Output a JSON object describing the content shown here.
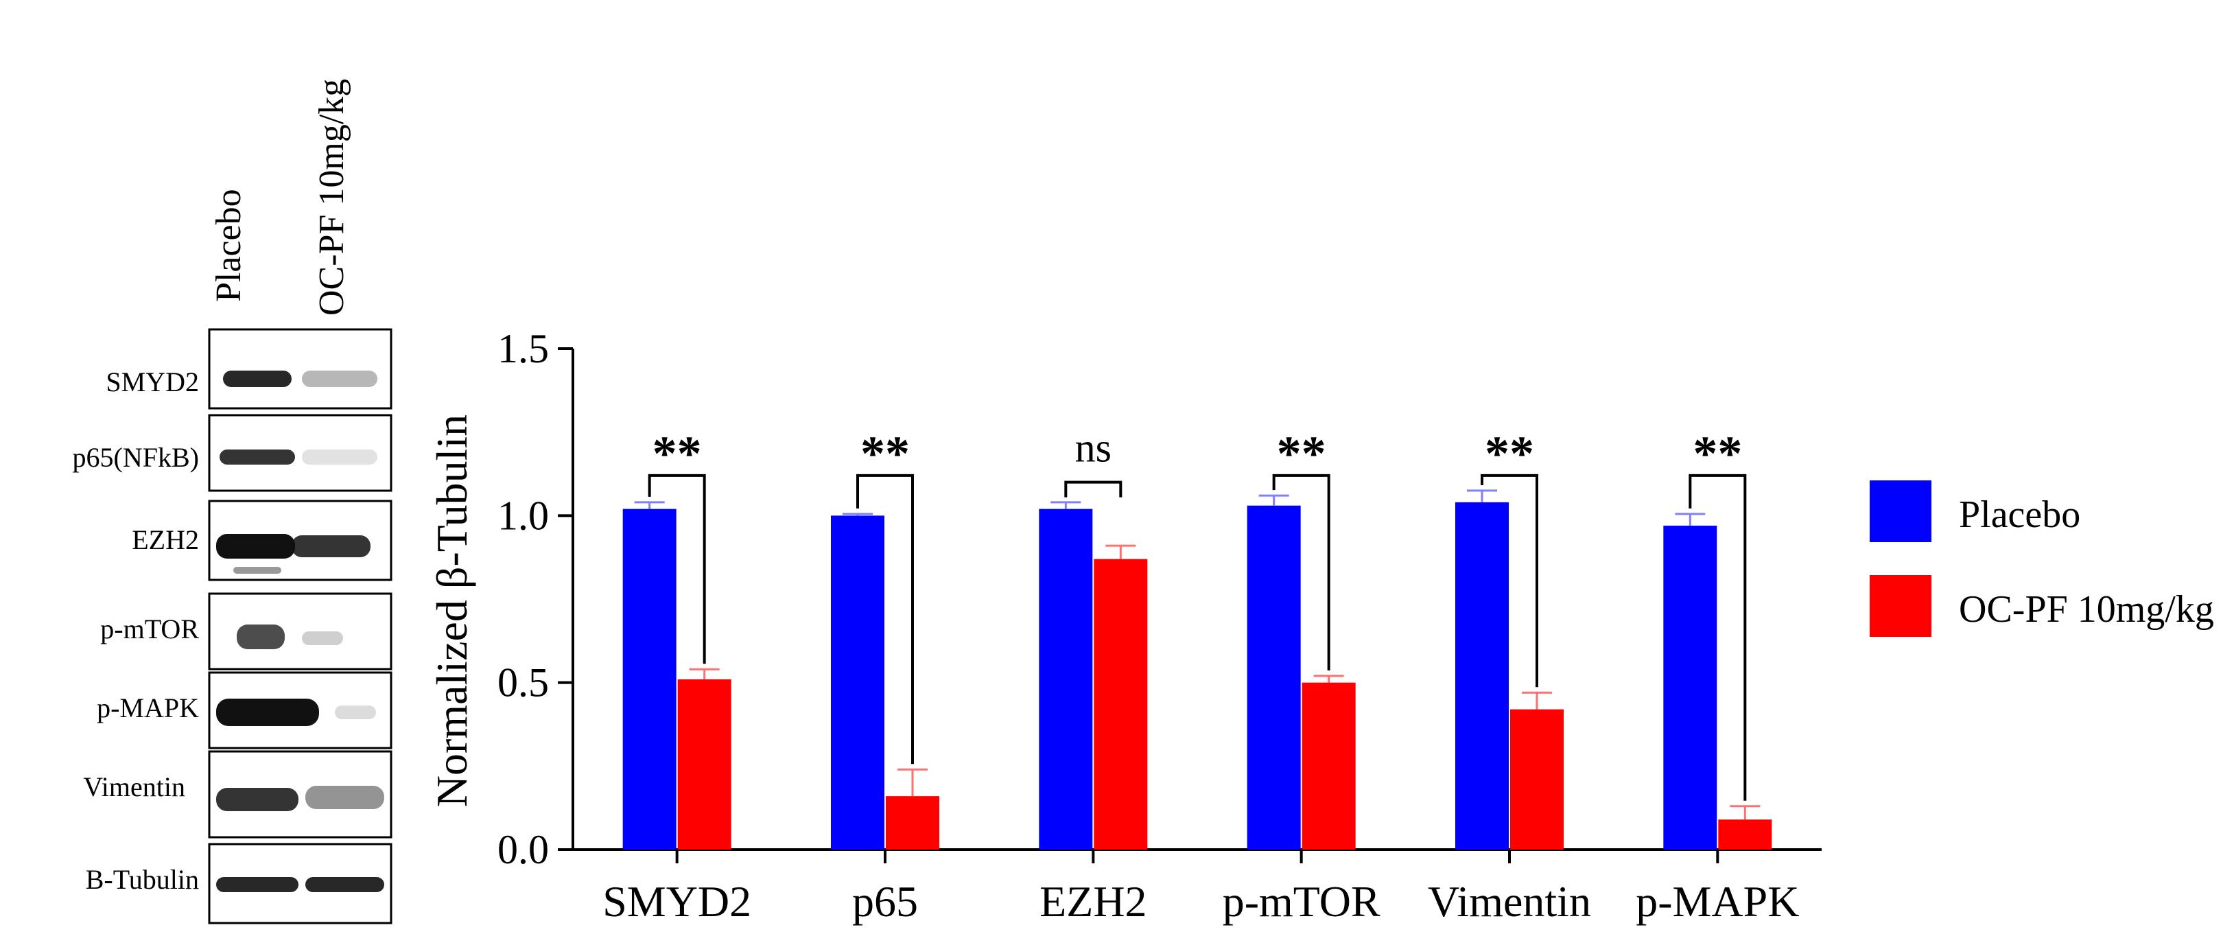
{
  "blot": {
    "lane_labels": [
      "Placebo",
      "OC-PF 10mg/kg"
    ],
    "rows": [
      {
        "label": "SMYD2",
        "bands": [
          0.9,
          0.3
        ]
      },
      {
        "label": "p65(NFkB)",
        "bands": [
          0.85,
          0.12
        ]
      },
      {
        "label": "EZH2",
        "bands": [
          1.0,
          0.85
        ]
      },
      {
        "label": "p-mTOR",
        "bands": [
          0.75,
          0.2
        ]
      },
      {
        "label": "p-MAPK",
        "bands": [
          1.0,
          0.15
        ]
      },
      {
        "label": "Vimentin",
        "bands": [
          0.85,
          0.45
        ]
      },
      {
        "label": "B-Tubulin",
        "bands": [
          0.9,
          0.9
        ]
      }
    ]
  },
  "chart_data": {
    "type": "bar",
    "title": "",
    "xlabel": "",
    "ylabel": "Normalized β-Tubulin",
    "ylim": [
      0,
      1.5
    ],
    "yticks": [
      "0.0",
      "0.5",
      "1.0",
      "1.5"
    ],
    "categories": [
      "SMYD2",
      "p65",
      "EZH2",
      "p-mTOR",
      "Vimentin",
      "p-MAPK"
    ],
    "series": [
      {
        "name": "Placebo",
        "color": "#0000ff",
        "error_color": "#8080ff",
        "values": [
          1.02,
          1.0,
          1.02,
          1.03,
          1.04,
          0.97
        ],
        "errors": [
          0.02,
          0.005,
          0.02,
          0.03,
          0.035,
          0.035
        ]
      },
      {
        "name": "OC-PF 10mg/kg",
        "color": "#ff0000",
        "error_color": "#ff7070",
        "values": [
          0.51,
          0.16,
          0.87,
          0.5,
          0.42,
          0.09
        ],
        "errors": [
          0.03,
          0.08,
          0.04,
          0.02,
          0.05,
          0.04
        ]
      }
    ],
    "significance": [
      "**",
      "**",
      "ns",
      "**",
      "**",
      "**"
    ],
    "legend": "right",
    "grid": false
  }
}
